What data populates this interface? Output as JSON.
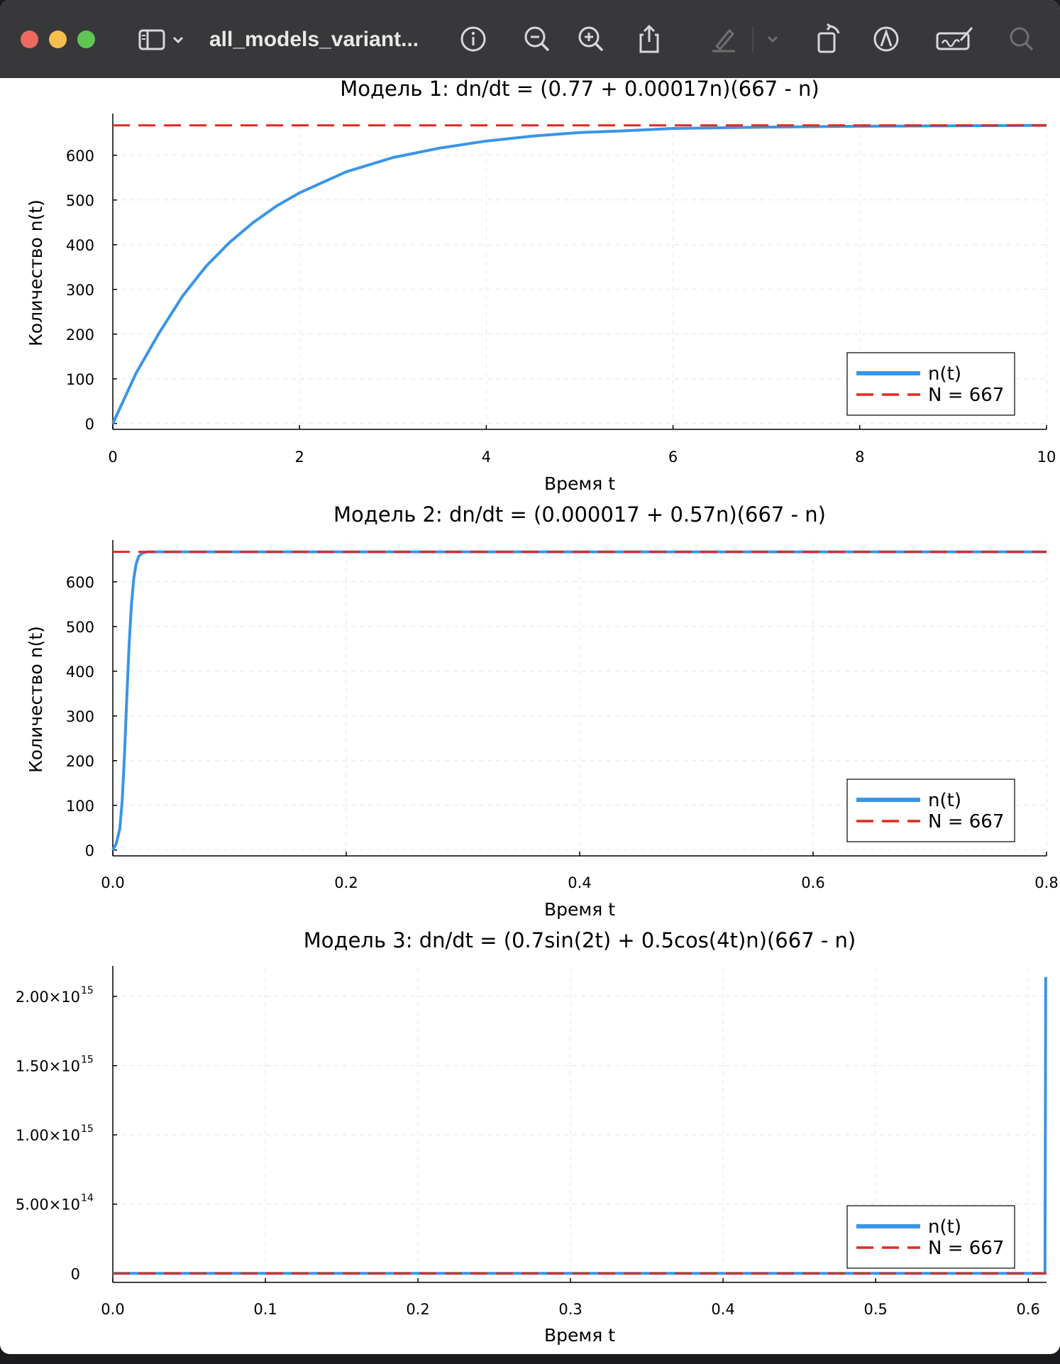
{
  "window": {
    "title": "all_models_variant...",
    "toolbar": [
      "sidebar-toggle",
      "info",
      "zoom-out",
      "zoom-in",
      "share",
      "highlight",
      "rotate",
      "markup",
      "signature",
      "search"
    ]
  },
  "colors": {
    "series": "#3a95e6",
    "reference": "#e12a23",
    "toolbar_bg": "#38383a"
  },
  "chart_data": [
    {
      "type": "line",
      "title": "Модель 1: dn/dt = (0.77 + 0.00017n)(667 - n)",
      "xlabel": "Время t",
      "ylabel": "Количество n(t)",
      "xlim": [
        0,
        10
      ],
      "ylim": [
        -13,
        687
      ],
      "xticks": [
        0,
        2,
        4,
        6,
        8,
        10
      ],
      "xtick_labels": [
        "0",
        "2",
        "4",
        "6",
        "8",
        "10"
      ],
      "yticks": [
        0,
        100,
        200,
        300,
        400,
        500,
        600
      ],
      "ytick_labels": [
        "0",
        "100",
        "200",
        "300",
        "400",
        "500",
        "600"
      ],
      "grid": true,
      "legend_position": "bottom-right",
      "series": [
        {
          "name": "n(t)",
          "style": "solid",
          "points": [
            [
              0,
              0
            ],
            [
              0.25,
              113
            ],
            [
              0.5,
              204
            ],
            [
              0.75,
              286
            ],
            [
              1,
              352
            ],
            [
              1.25,
              405
            ],
            [
              1.5,
              449
            ],
            [
              1.75,
              486
            ],
            [
              2,
              516
            ],
            [
              2.5,
              563
            ],
            [
              3,
              595
            ],
            [
              3.5,
              616
            ],
            [
              4,
              632
            ],
            [
              4.5,
              643
            ],
            [
              5,
              651
            ],
            [
              5.5,
              655
            ],
            [
              6,
              660
            ],
            [
              7,
              663
            ],
            [
              8,
              665
            ],
            [
              9,
              666
            ],
            [
              10,
              667
            ]
          ]
        },
        {
          "name": "N = 667",
          "style": "dashed",
          "constant": 667
        }
      ]
    },
    {
      "type": "line",
      "title": "Модель 2: dn/dt = (0.000017 + 0.57n)(667 - n)",
      "xlabel": "Время t",
      "ylabel": "Количество n(t)",
      "xlim": [
        0,
        0.8
      ],
      "ylim": [
        -13,
        687
      ],
      "xticks": [
        0,
        0.2,
        0.4,
        0.6,
        0.8
      ],
      "xtick_labels": [
        "0.0",
        "0.2",
        "0.4",
        "0.6",
        "0.8"
      ],
      "yticks": [
        0,
        100,
        200,
        300,
        400,
        500,
        600
      ],
      "ytick_labels": [
        "0",
        "100",
        "200",
        "300",
        "400",
        "500",
        "600"
      ],
      "grid": true,
      "legend_position": "bottom-right",
      "series": [
        {
          "name": "n(t)",
          "style": "solid",
          "points": [
            [
              0,
              0
            ],
            [
              0.003,
              15
            ],
            [
              0.006,
              48
            ],
            [
              0.008,
              110
            ],
            [
              0.01,
              210
            ],
            [
              0.012,
              340
            ],
            [
              0.014,
              460
            ],
            [
              0.016,
              550
            ],
            [
              0.018,
              608
            ],
            [
              0.02,
              640
            ],
            [
              0.022,
              656
            ],
            [
              0.025,
              664
            ],
            [
              0.03,
              667
            ],
            [
              0.8,
              667
            ]
          ]
        },
        {
          "name": "N = 667",
          "style": "dashed",
          "constant": 667
        }
      ]
    },
    {
      "type": "line",
      "title": "Модель 3: dn/dt = (0.7sin(2t) + 0.5cos(4t)n)(667 - n)",
      "xlabel": "Время t",
      "ylabel": "",
      "xlim": [
        0,
        0.612
      ],
      "ylim": [
        -65000000000000.0,
        2200000000000000.0
      ],
      "xticks": [
        0,
        0.1,
        0.2,
        0.3,
        0.4,
        0.5,
        0.6
      ],
      "xtick_labels": [
        "0.0",
        "0.1",
        "0.2",
        "0.3",
        "0.4",
        "0.5",
        "0.6"
      ],
      "yticks": [
        0,
        500000000000000.0,
        1000000000000000.0,
        1500000000000000.0,
        2000000000000000.0
      ],
      "ytick_labels": [
        "0",
        "5.00×10",
        "1.00×10",
        "1.50×10",
        "2.00×10"
      ],
      "ytick_exponents": [
        "",
        "14",
        "15",
        "15",
        "15"
      ],
      "grid": true,
      "legend_position": "bottom-right",
      "series": [
        {
          "name": "n(t)",
          "style": "solid",
          "points": [
            [
              0,
              0
            ],
            [
              0.611,
              0
            ],
            [
              0.6115,
              2140000000000000.0
            ]
          ]
        },
        {
          "name": "N = 667",
          "style": "dashed",
          "constant": 667
        }
      ]
    }
  ]
}
